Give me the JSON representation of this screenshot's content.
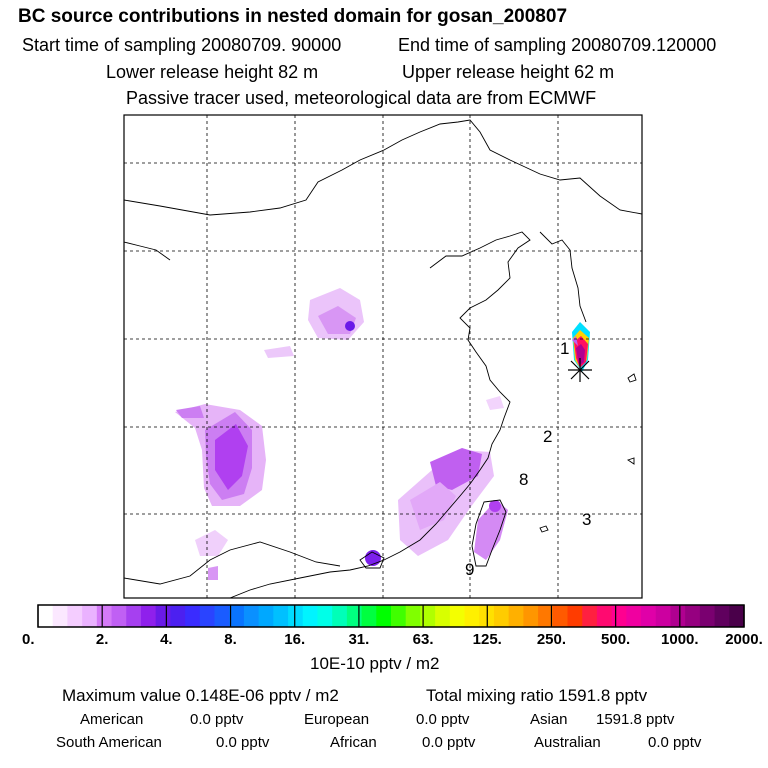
{
  "header": {
    "title": "BC  source contributions in nested domain for gosan_200807",
    "start_time": "Start time of sampling 20080709. 90000",
    "end_time": "End time of sampling 20080709.120000",
    "lower_release": "Lower release height   82 m",
    "upper_release": "Upper release height   62 m",
    "tracer_note": "Passive tracer used, meteorological data are from ECMWF"
  },
  "map": {
    "markers": [
      "1",
      "2",
      "8",
      "3",
      "9"
    ]
  },
  "colorbar": {
    "tick_labels": [
      "0.",
      "2.",
      "4.",
      "8.",
      "16.",
      "31.",
      "63.",
      "125.",
      "250.",
      "500.",
      "1000.",
      "2000."
    ],
    "colors": [
      "#ffffff",
      "#fbe8ff",
      "#f4cdff",
      "#eab2ff",
      "#d47af7",
      "#c060f4",
      "#a640f0",
      "#8f20ec",
      "#6a1ae8",
      "#4c20f0",
      "#3a2cff",
      "#2a44ff",
      "#1a5cff",
      "#0a74ff",
      "#0a90ff",
      "#00a8ff",
      "#00c0ff",
      "#00dcff",
      "#00f4ff",
      "#00ffe8",
      "#00ffb8",
      "#00ff80",
      "#00ff40",
      "#00ff00",
      "#40ff00",
      "#80ff00",
      "#b0ff00",
      "#d8ff00",
      "#f4ff00",
      "#fff000",
      "#ffe000",
      "#ffcc00",
      "#ffb000",
      "#ff9600",
      "#ff7800",
      "#ff5a00",
      "#ff3c00",
      "#ff2040",
      "#ff0a70",
      "#ff0090",
      "#f000a0",
      "#e000a8",
      "#cc00a0",
      "#b00090",
      "#960080",
      "#7a0070",
      "#60005e",
      "#4a004a"
    ],
    "units": "10E-10 pptv / m2"
  },
  "summary": {
    "max_value": "Maximum value  0.148E-06 pptv / m2",
    "total_mixing": "Total mixing ratio     1591.8 pptv",
    "american": "American",
    "american_val": "0.0 pptv",
    "european": "European",
    "european_val": "0.0 pptv",
    "asian": "Asian",
    "asian_val": "1591.8 pptv",
    "south_american": "South American",
    "south_american_val": "0.0 pptv",
    "african": "African",
    "african_val": "0.0 pptv",
    "australian": "Australian",
    "australian_val": "0.0 pptv"
  }
}
